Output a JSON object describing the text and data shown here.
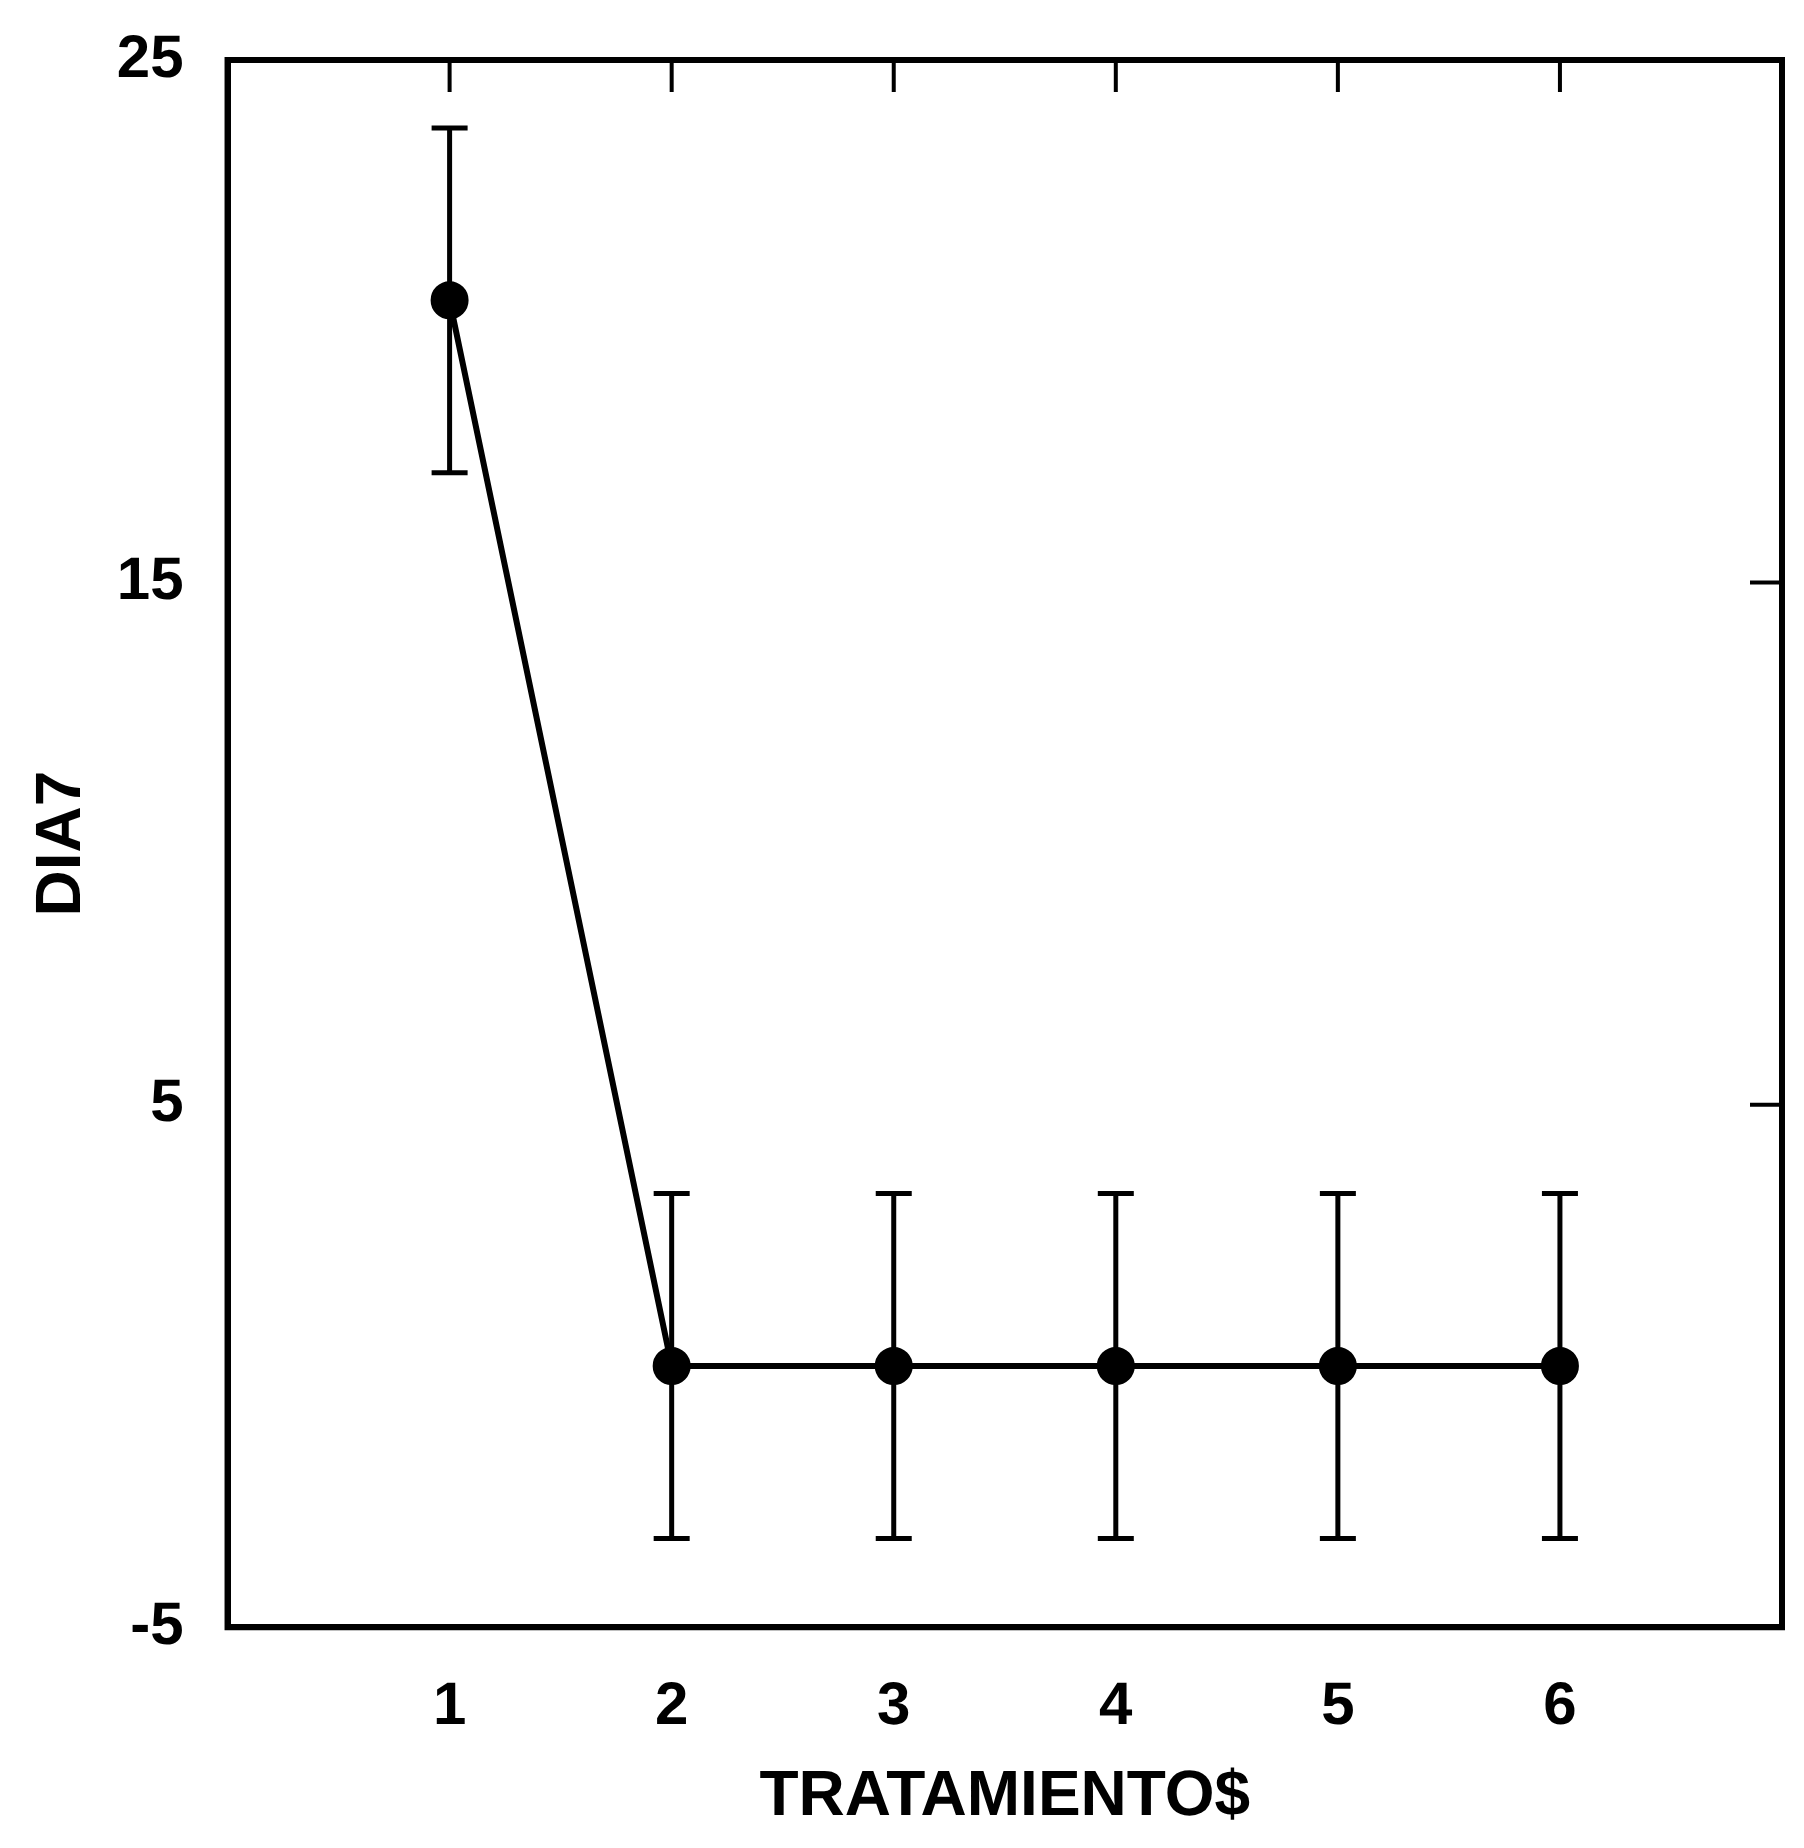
{
  "chart_data": {
    "type": "line",
    "xlabel": "TRATAMIENTO$",
    "ylabel": "DIA7",
    "x": [
      1,
      2,
      3,
      4,
      5,
      6
    ],
    "series": [
      {
        "color": "#000000",
        "values": [
          20.4,
          0,
          0,
          0,
          0,
          0
        ],
        "errors": [
          3.3,
          3.3,
          3.3,
          3.3,
          3.3,
          3.3
        ]
      }
    ],
    "xlim": [
      0,
      7
    ],
    "xticks": [
      1,
      2,
      3,
      4,
      5,
      6
    ],
    "ylim": [
      -5,
      25
    ],
    "yticks": [
      -5,
      5,
      15,
      25
    ],
    "grid": false,
    "legend": false,
    "marker": "circle",
    "line_style": "solid"
  }
}
